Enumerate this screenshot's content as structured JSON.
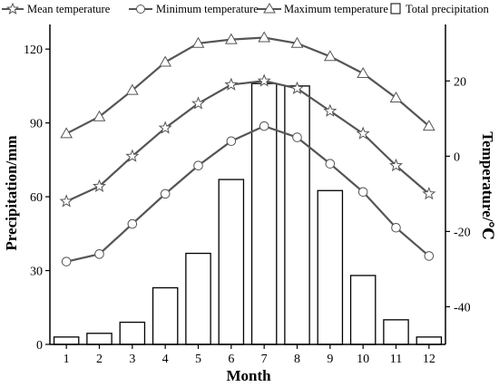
{
  "chart_data": {
    "type": "bar+line",
    "categories": [
      "1",
      "2",
      "3",
      "4",
      "5",
      "6",
      "7",
      "8",
      "9",
      "10",
      "11",
      "12"
    ],
    "xlabel": "Month",
    "ylabel_left": "Precipitation/mm",
    "ylabel_right": "Temperature/℃",
    "ylim_left": [
      0,
      130
    ],
    "ylim_right": [
      -50,
      35
    ],
    "yticks_left": [
      0,
      30,
      60,
      90,
      120
    ],
    "yticks_right": [
      -40,
      -20,
      0,
      20
    ],
    "bars": {
      "name": "Total precipitation",
      "axis": "left",
      "values": [
        3,
        4.5,
        9,
        23,
        37,
        67,
        106,
        105,
        62.5,
        28,
        10,
        3
      ]
    },
    "series": [
      {
        "name": "Mean temperature",
        "axis": "right",
        "marker": "star",
        "values": [
          -12,
          -8,
          0,
          7.5,
          14,
          19,
          20,
          18,
          12,
          6,
          -2.5,
          -10
        ]
      },
      {
        "name": "Minimum temperature",
        "axis": "right",
        "marker": "circle",
        "values": [
          -28,
          -26,
          -18,
          -10,
          -2.5,
          4,
          8,
          5,
          -2,
          -9.5,
          -19,
          -26.5
        ]
      },
      {
        "name": "Maximum temperature",
        "axis": "right",
        "marker": "triangle",
        "values": [
          6,
          10.5,
          17.5,
          25,
          30,
          31,
          31.5,
          30,
          26.5,
          22,
          15.5,
          8
        ]
      }
    ],
    "legend_position": "top",
    "grid": false
  }
}
